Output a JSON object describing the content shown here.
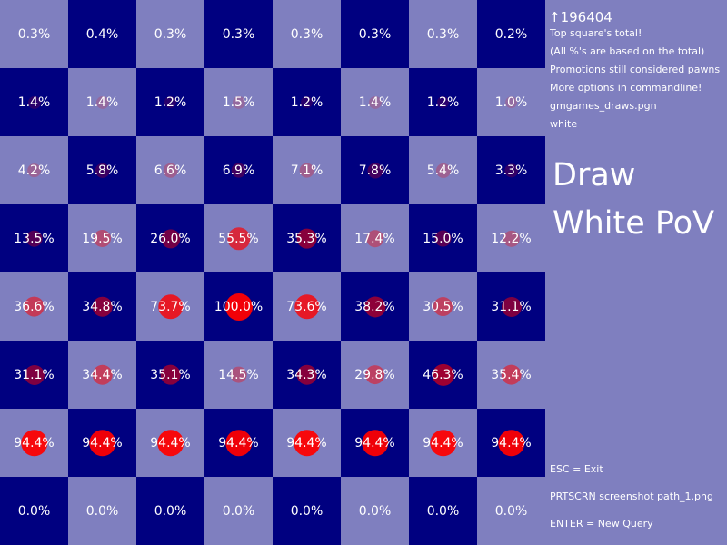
{
  "sidebar": {
    "top_total": "↑196404",
    "lines": [
      "Top square's total!",
      "(All %'s are based on the total)",
      "Promotions still considered pawns",
      "More options in commandline!",
      "gmgames_draws.pgn",
      "white"
    ],
    "title": "Draw",
    "subtitle": "White PoV",
    "footer": [
      "ESC = Exit",
      "PRTSCRN screenshot path_1.png",
      "ENTER = New Query"
    ]
  },
  "colors": {
    "light_square": "#7f7fbf",
    "dark_square": "#000080",
    "heat": "#ff0000",
    "text": "#ffffff"
  },
  "board": {
    "rows": [
      [
        "0.3%",
        "0.4%",
        "0.3%",
        "0.3%",
        "0.3%",
        "0.3%",
        "0.3%",
        "0.2%"
      ],
      [
        "1.4%",
        "1.4%",
        "1.2%",
        "1.5%",
        "1.2%",
        "1.4%",
        "1.2%",
        "1.0%"
      ],
      [
        "4.2%",
        "5.8%",
        "6.6%",
        "6.9%",
        "7.1%",
        "7.8%",
        "5.4%",
        "3.3%"
      ],
      [
        "13.5%",
        "19.5%",
        "26.0%",
        "55.5%",
        "35.3%",
        "17.4%",
        "15.0%",
        "12.2%"
      ],
      [
        "36.6%",
        "34.8%",
        "73.7%",
        "100.0%",
        "73.6%",
        "38.2%",
        "30.5%",
        "31.1%"
      ],
      [
        "31.1%",
        "34.4%",
        "35.1%",
        "14.5%",
        "34.3%",
        "29.8%",
        "46.3%",
        "35.4%"
      ],
      [
        "94.4%",
        "94.4%",
        "94.4%",
        "94.4%",
        "94.4%",
        "94.4%",
        "94.4%",
        "94.4%"
      ],
      [
        "0.0%",
        "0.0%",
        "0.0%",
        "0.0%",
        "0.0%",
        "0.0%",
        "0.0%",
        "0.0%"
      ]
    ]
  }
}
